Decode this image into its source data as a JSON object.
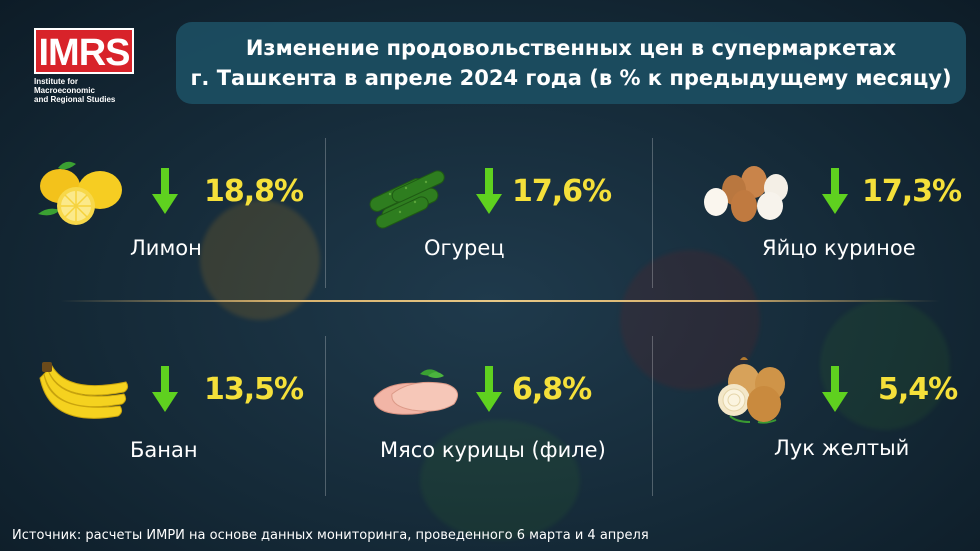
{
  "logo": {
    "text": "IMRS",
    "subtitle_line1": "Institute for Macroeconomic",
    "subtitle_line2": "and Regional Studies"
  },
  "title": {
    "line1": "Изменение продовольственных цен в супермаркетах",
    "line2": "г. Ташкента в апреле 2024 года (в % к предыдущему месяцу)"
  },
  "colors": {
    "accent_yellow": "#f5e03a",
    "arrow_green": "#5fd11f",
    "logo_red": "#d8232a",
    "title_bg": "#1c4e62"
  },
  "items": [
    {
      "name": "Лимон",
      "value": "18,8%",
      "direction": "down",
      "icon": "lemon-icon"
    },
    {
      "name": "Огурец",
      "value": "17,6%",
      "direction": "down",
      "icon": "cucumber-icon"
    },
    {
      "name": "Яйцо куриное",
      "value": "17,3%",
      "direction": "down",
      "icon": "eggs-icon"
    },
    {
      "name": "Банан",
      "value": "13,5%",
      "direction": "down",
      "icon": "banana-icon"
    },
    {
      "name": "Мясо курицы (филе)",
      "value": "6,8%",
      "direction": "down",
      "icon": "chicken-fillet-icon"
    },
    {
      "name": "Лук желтый",
      "value": "5,4%",
      "direction": "down",
      "icon": "onion-icon"
    }
  ],
  "source": "Источник: расчеты ИМРИ на основе данных мониторинга, проведенного 6 марта и 4 апреля"
}
